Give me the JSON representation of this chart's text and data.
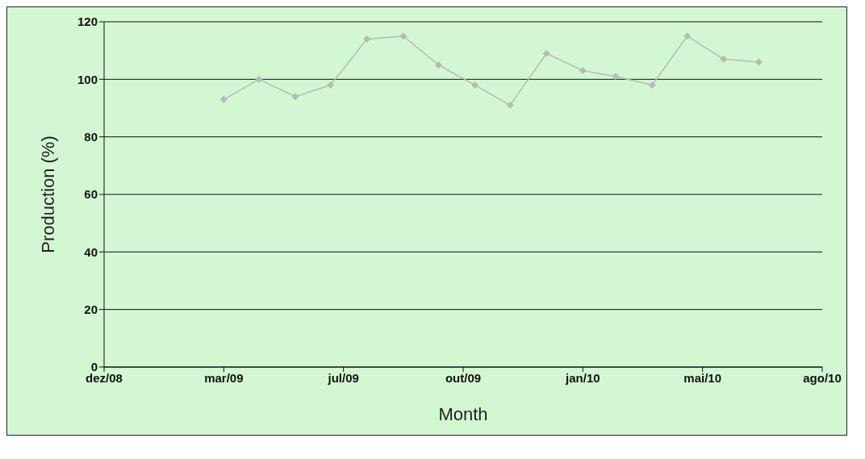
{
  "chart_data": {
    "type": "line",
    "xlabel": "Month",
    "ylabel": "Production (%)",
    "x": [
      "2009-03-31",
      "2009-04-30",
      "2009-05-31",
      "2009-06-30",
      "2009-07-31",
      "2009-08-31",
      "2009-09-30",
      "2009-10-31",
      "2009-11-30",
      "2009-12-31",
      "2010-01-31",
      "2010-02-28",
      "2010-03-31",
      "2010-04-30",
      "2010-05-31",
      "2010-06-30"
    ],
    "series": [
      {
        "color": "#b4bcb4",
        "values": [
          93,
          100,
          94,
          98,
          114,
          115,
          105,
          98,
          91,
          109,
          103,
          101,
          98,
          115,
          107,
          106
        ]
      }
    ],
    "xlim": [
      "2008-12-19",
      "2010-08-23"
    ],
    "xticks": [
      {
        "value": "2008-12-19",
        "label": "dez/08"
      },
      {
        "value": "2009-03-31",
        "label": "mar/09"
      },
      {
        "value": "2009-07-11",
        "label": "jul/09"
      },
      {
        "value": "2009-10-21",
        "label": "out/09"
      },
      {
        "value": "2010-01-31",
        "label": "jan/10"
      },
      {
        "value": "2010-05-13",
        "label": "mai/10"
      },
      {
        "value": "2010-08-23",
        "label": "ago/10"
      }
    ],
    "ylim": [
      0,
      120
    ],
    "yticks": [
      0,
      20,
      40,
      60,
      80,
      100,
      120
    ],
    "grid": "y",
    "legend": false,
    "marker": "diamond",
    "line_style": "solid"
  }
}
